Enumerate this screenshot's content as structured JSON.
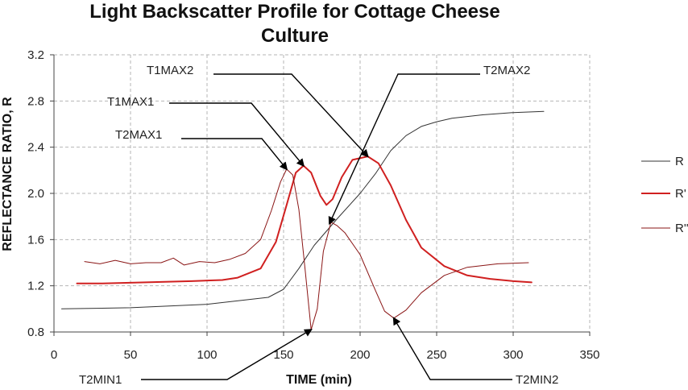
{
  "chart_data": {
    "type": "line",
    "title_lines": [
      "Light Backscatter Profile for Cottage Cheese",
      "Culture"
    ],
    "xlabel": "TIME (min)",
    "ylabel": "REFLECTANCE RATIO, R",
    "xlim": [
      0,
      350
    ],
    "ylim": [
      0.8,
      3.2
    ],
    "xticks": [
      "0",
      "50",
      "100",
      "150",
      "200",
      "250",
      "300",
      "350"
    ],
    "yticks": [
      "0.8",
      "1.2",
      "1.6",
      "2.0",
      "2.4",
      "2.8",
      "3.2"
    ],
    "grid": true,
    "legend_position": "right",
    "series": [
      {
        "name": "R",
        "color": "#333333",
        "width": 1,
        "x": [
          5,
          50,
          100,
          140,
          150,
          160,
          170,
          185,
          200,
          210,
          220,
          230,
          240,
          250,
          260,
          280,
          300,
          320
        ],
        "y": [
          1.0,
          1.01,
          1.04,
          1.1,
          1.17,
          1.35,
          1.55,
          1.78,
          2.0,
          2.17,
          2.37,
          2.5,
          2.58,
          2.62,
          2.65,
          2.68,
          2.7,
          2.71
        ]
      },
      {
        "name": "R'",
        "color": "#d02020",
        "width": 2,
        "x": [
          15,
          30,
          60,
          90,
          110,
          120,
          135,
          145,
          152,
          158,
          163,
          168,
          174,
          178,
          182,
          188,
          195,
          205,
          212,
          220,
          230,
          240,
          255,
          270,
          285,
          300,
          312
        ],
        "y": [
          1.22,
          1.22,
          1.23,
          1.24,
          1.25,
          1.27,
          1.35,
          1.58,
          1.9,
          2.18,
          2.24,
          2.18,
          1.98,
          1.9,
          1.95,
          2.14,
          2.29,
          2.32,
          2.26,
          2.07,
          1.77,
          1.53,
          1.37,
          1.29,
          1.26,
          1.24,
          1.23
        ]
      },
      {
        "name": "R''",
        "color": "#8a1515",
        "width": 1,
        "x": [
          20,
          30,
          40,
          50,
          60,
          70,
          78,
          85,
          95,
          105,
          115,
          125,
          135,
          142,
          148,
          152,
          156,
          160,
          164,
          168,
          172,
          176,
          181,
          185,
          190,
          200,
          210,
          216,
          222,
          230,
          240,
          255,
          270,
          290,
          310
        ],
        "y": [
          1.41,
          1.39,
          1.42,
          1.39,
          1.4,
          1.4,
          1.44,
          1.38,
          1.41,
          1.4,
          1.43,
          1.48,
          1.6,
          1.85,
          2.1,
          2.21,
          2.16,
          1.86,
          1.35,
          0.82,
          1.0,
          1.5,
          1.75,
          1.72,
          1.66,
          1.47,
          1.16,
          0.98,
          0.92,
          0.99,
          1.14,
          1.29,
          1.36,
          1.39,
          1.4
        ]
      }
    ],
    "annotations": [
      {
        "label": "T1MAX2",
        "target": [
          205,
          2.32
        ]
      },
      {
        "label": "T2MAX2",
        "target": [
          180,
          1.74
        ]
      },
      {
        "label": "T1MAX1",
        "target": [
          163,
          2.24
        ]
      },
      {
        "label": "T2MAX1",
        "target": [
          152,
          2.21
        ]
      },
      {
        "label": "T2MIN1",
        "target": [
          168,
          0.82
        ]
      },
      {
        "label": "T2MIN2",
        "target": [
          222,
          0.92
        ]
      }
    ]
  }
}
